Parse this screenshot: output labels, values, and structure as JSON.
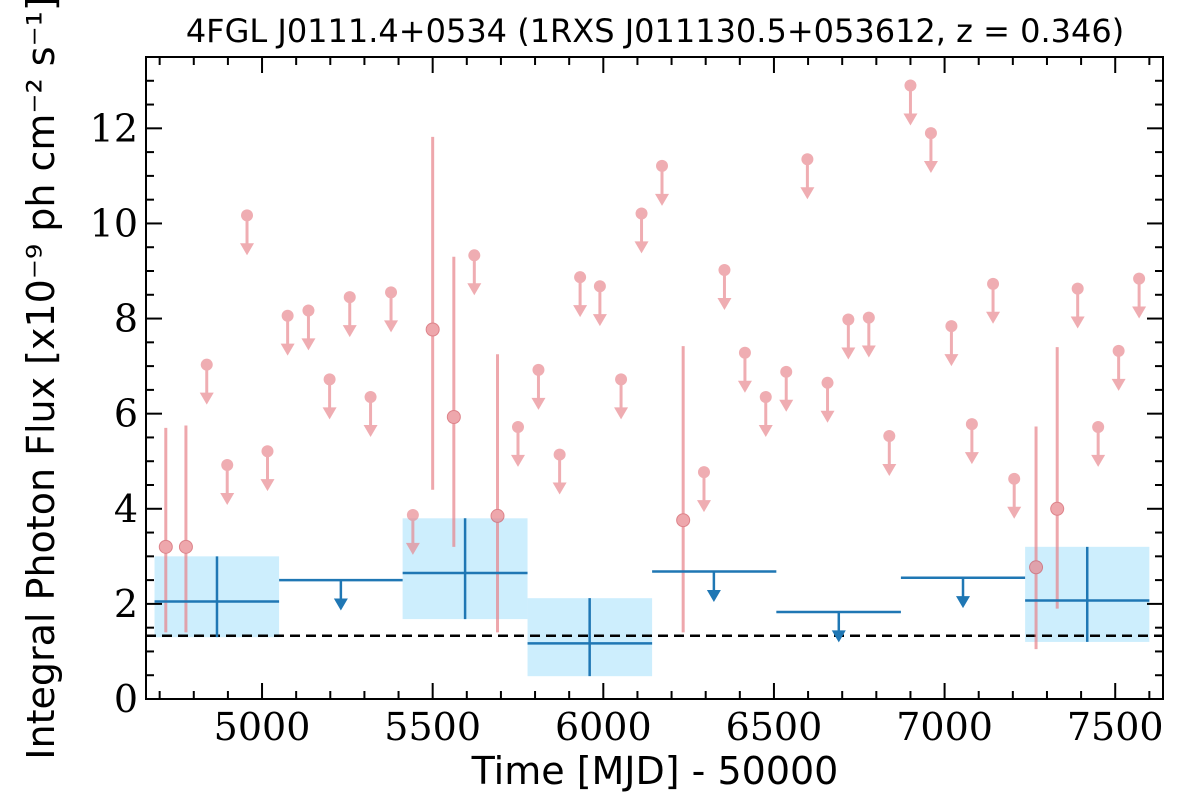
{
  "chart_data": {
    "type": "scatter",
    "title": "4FGL J0111.4+0534 (1RXS J011130.5+053612, z = 0.346)",
    "xlabel": "Time [MJD] - 50000",
    "ylabel": "Integral Photon Flux [x10⁻⁹ ph cm⁻² s⁻¹]",
    "xlim": [
      4660,
      7640
    ],
    "ylim": [
      0,
      13.5
    ],
    "x_ticks": [
      5000,
      5500,
      6000,
      6500,
      7000,
      7500
    ],
    "y_ticks": [
      0,
      2,
      4,
      6,
      8,
      10,
      12
    ],
    "x_tick_labels": [
      "5000",
      "5500",
      "6000",
      "6500",
      "7000",
      "7500"
    ],
    "y_tick_labels": [
      "0",
      "2",
      "4",
      "6",
      "8",
      "10",
      "12"
    ],
    "grid": false,
    "colors": {
      "short_bins": "#e8828a",
      "long_bins": "#1f77b4",
      "long_bin_band": "#cdeefd",
      "baseline": "#000000"
    },
    "baseline_flux": 1.33,
    "short_bin_detections": [
      {
        "x": 4718,
        "y": 3.2,
        "ylo": 1.4,
        "yhi": 5.7
      },
      {
        "x": 4777,
        "y": 3.2,
        "ylo": 1.4,
        "yhi": 5.75
      },
      {
        "x": 5500,
        "y": 7.77,
        "ylo": 4.4,
        "yhi": 11.82
      },
      {
        "x": 5562,
        "y": 5.93,
        "ylo": 3.2,
        "yhi": 9.3
      },
      {
        "x": 5690,
        "y": 3.85,
        "ylo": 1.4,
        "yhi": 7.25
      },
      {
        "x": 6234,
        "y": 3.76,
        "ylo": 1.4,
        "yhi": 7.42
      },
      {
        "x": 7268,
        "y": 2.77,
        "ylo": 1.05,
        "yhi": 5.73
      },
      {
        "x": 7330,
        "y": 4.0,
        "ylo": 1.9,
        "yhi": 7.4
      }
    ],
    "short_bin_upper_limits": [
      {
        "x": 4838,
        "y": 7.03
      },
      {
        "x": 4898,
        "y": 4.92
      },
      {
        "x": 4956,
        "y": 10.17
      },
      {
        "x": 5016,
        "y": 5.21
      },
      {
        "x": 5075,
        "y": 8.06
      },
      {
        "x": 5136,
        "y": 8.17
      },
      {
        "x": 5198,
        "y": 6.72
      },
      {
        "x": 5257,
        "y": 8.45
      },
      {
        "x": 5318,
        "y": 6.35
      },
      {
        "x": 5378,
        "y": 8.55
      },
      {
        "x": 5442,
        "y": 3.87
      },
      {
        "x": 5622,
        "y": 9.33
      },
      {
        "x": 5750,
        "y": 5.72
      },
      {
        "x": 5810,
        "y": 6.92
      },
      {
        "x": 5872,
        "y": 5.14
      },
      {
        "x": 5932,
        "y": 8.87
      },
      {
        "x": 5990,
        "y": 8.68
      },
      {
        "x": 6052,
        "y": 6.72
      },
      {
        "x": 6112,
        "y": 10.21
      },
      {
        "x": 6172,
        "y": 11.21
      },
      {
        "x": 6295,
        "y": 4.77
      },
      {
        "x": 6355,
        "y": 9.02
      },
      {
        "x": 6415,
        "y": 7.28
      },
      {
        "x": 6476,
        "y": 6.35
      },
      {
        "x": 6536,
        "y": 6.88
      },
      {
        "x": 6598,
        "y": 11.35
      },
      {
        "x": 6657,
        "y": 6.65
      },
      {
        "x": 6718,
        "y": 7.98
      },
      {
        "x": 6778,
        "y": 8.02
      },
      {
        "x": 6838,
        "y": 5.53
      },
      {
        "x": 6900,
        "y": 12.9
      },
      {
        "x": 6960,
        "y": 11.9
      },
      {
        "x": 7020,
        "y": 7.84
      },
      {
        "x": 7080,
        "y": 5.78
      },
      {
        "x": 7142,
        "y": 8.73
      },
      {
        "x": 7204,
        "y": 4.63
      },
      {
        "x": 7390,
        "y": 8.63
      },
      {
        "x": 7450,
        "y": 5.72
      },
      {
        "x": 7510,
        "y": 7.32
      },
      {
        "x": 7570,
        "y": 8.84
      }
    ],
    "long_bin_detections": [
      {
        "x": 4868,
        "xlo": 4685,
        "xhi": 5050,
        "y": 2.05,
        "ylo": 1.3,
        "yhi": 3.0
      },
      {
        "x": 5595,
        "xlo": 5412,
        "xhi": 5778,
        "y": 2.65,
        "ylo": 1.68,
        "yhi": 3.8
      },
      {
        "x": 5960,
        "xlo": 5778,
        "xhi": 6143,
        "y": 1.17,
        "ylo": 0.48,
        "yhi": 2.12
      },
      {
        "x": 7418,
        "xlo": 7236,
        "xhi": 7600,
        "y": 2.07,
        "ylo": 1.2,
        "yhi": 3.2
      }
    ],
    "long_bin_upper_limits": [
      {
        "x": 5231,
        "xlo": 5050,
        "xhi": 5412,
        "y": 2.5
      },
      {
        "x": 6324,
        "xlo": 6143,
        "xhi": 6507,
        "y": 2.68
      },
      {
        "x": 6690,
        "xlo": 6507,
        "xhi": 6872,
        "y": 1.83
      },
      {
        "x": 7054,
        "xlo": 6872,
        "xhi": 7236,
        "y": 2.55
      }
    ]
  }
}
